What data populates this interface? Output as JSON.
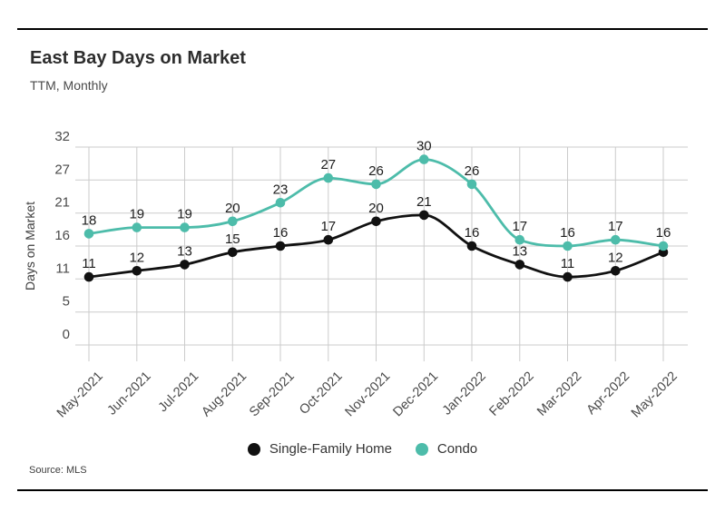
{
  "header": {
    "title": "East Bay Days on Market",
    "subtitle": "TTM, Monthly"
  },
  "chart_data": {
    "type": "line",
    "title": "East Bay Days on Market",
    "subtitle": "TTM, Monthly",
    "xlabel": "",
    "ylabel": "Days on Market",
    "ylim": [
      0,
      32
    ],
    "grid": true,
    "legend_position": "bottom",
    "y_tick_labels": [
      "0",
      "5",
      "11",
      "16",
      "21",
      "27",
      "32"
    ],
    "categories": [
      "May-2021",
      "Jun-2021",
      "Jul-2021",
      "Aug-2021",
      "Sep-2021",
      "Oct-2021",
      "Nov-2021",
      "Dec-2021",
      "Jan-2022",
      "Feb-2022",
      "Mar-2022",
      "Apr-2022",
      "May-2022"
    ],
    "series": [
      {
        "name": "Single-Family Home",
        "color": "#111111",
        "values": [
          11,
          12,
          13,
          15,
          16,
          17,
          20,
          21,
          16,
          13,
          11,
          12,
          15
        ],
        "point_labels": [
          "11",
          "12",
          "13",
          "15",
          "16",
          "17",
          "20",
          "21",
          "16",
          "13",
          "11",
          "12",
          ""
        ]
      },
      {
        "name": "Condo",
        "color": "#4dbcaa",
        "values": [
          18,
          19,
          19,
          20,
          23,
          27,
          26,
          30,
          26,
          17,
          16,
          17,
          16
        ],
        "point_labels": [
          "18",
          "19",
          "19",
          "20",
          "23",
          "27",
          "26",
          "30",
          "26",
          "17",
          "16",
          "17",
          "16"
        ]
      }
    ]
  },
  "legend": {
    "items": [
      {
        "label": "Single-Family Home",
        "color": "#111111"
      },
      {
        "label": "Condo",
        "color": "#4dbcaa"
      }
    ]
  },
  "source": {
    "text": "Source: MLS"
  },
  "colors": {
    "grid": "#cbcbcb",
    "axis_text": "#4a4a4a",
    "data_label": "#1c1c1c"
  }
}
